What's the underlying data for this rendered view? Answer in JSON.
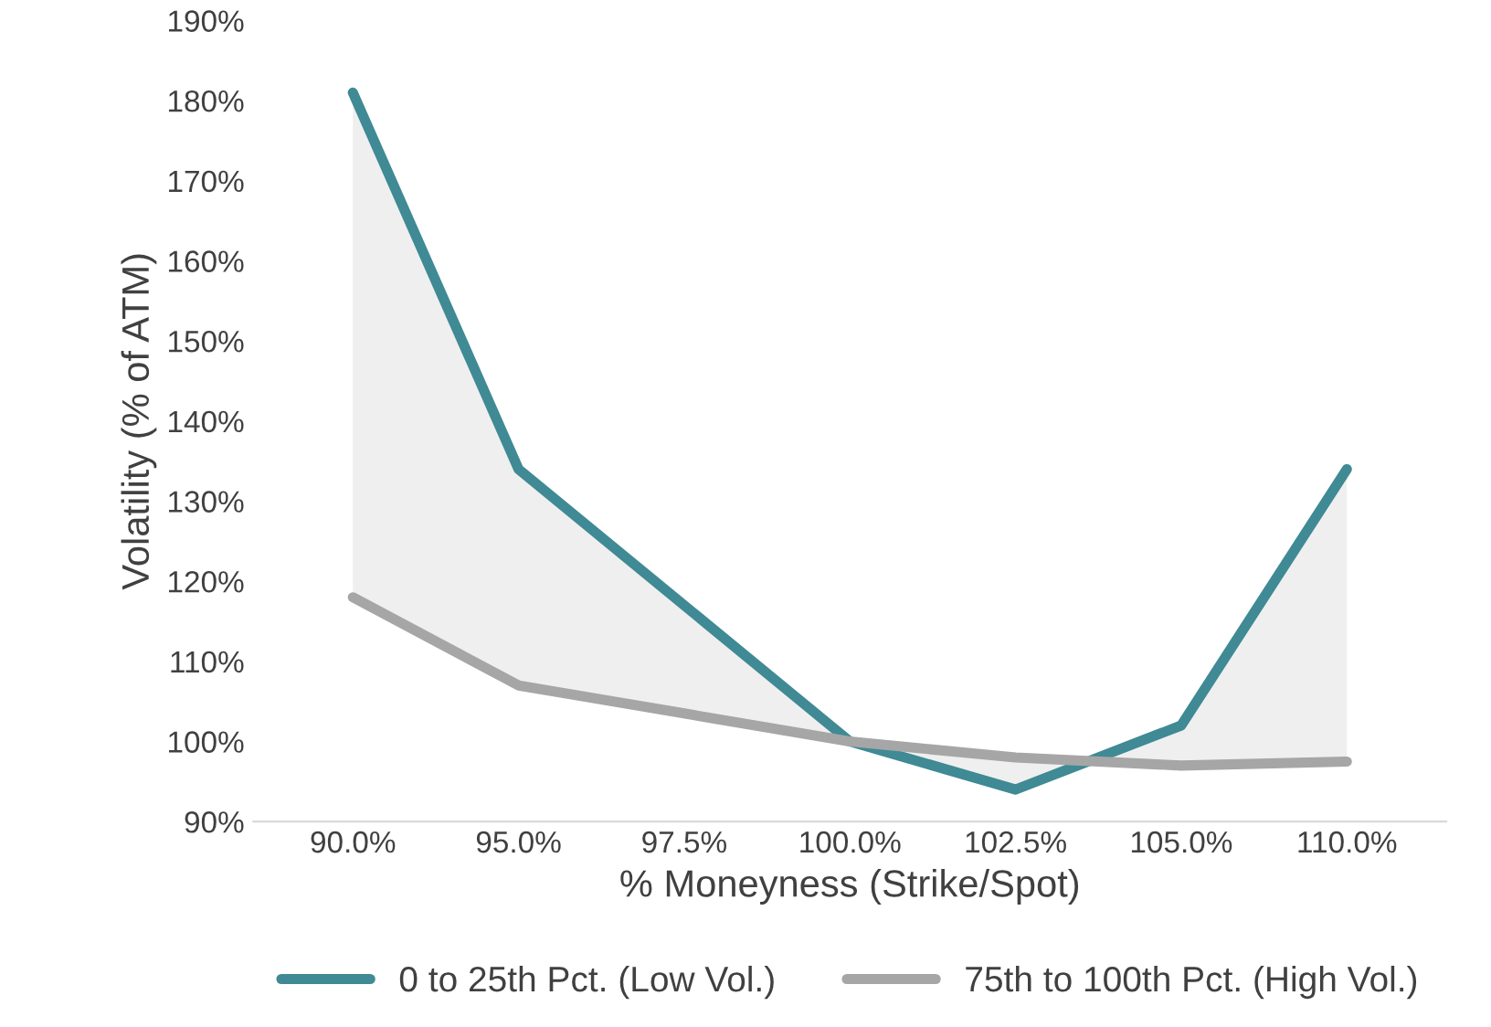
{
  "chart_data": {
    "type": "line",
    "xlabel": "% Moneyness (Strike/Spot)",
    "ylabel": "Volatility (% of ATM)",
    "categories": [
      "90.0%",
      "95.0%",
      "97.5%",
      "100.0%",
      "102.5%",
      "105.0%",
      "110.0%"
    ],
    "series": [
      {
        "name": "0 to 25th Pct. (Low Vol.)",
        "color": "#3f8a94",
        "values": [
          181,
          134,
          117,
          100,
          94,
          102,
          134
        ],
        "lower": [
          118,
          107,
          103.5,
          100,
          98,
          97,
          97.5
        ],
        "upper": [
          181,
          134,
          117,
          100,
          94,
          102,
          134
        ]
      },
      {
        "name": "75th to 100th Pct. (High Vol.)",
        "color": "#a6a6a6",
        "values": [
          118,
          107,
          103.5,
          100,
          98,
          97,
          97.5
        ]
      }
    ],
    "ylim": [
      90,
      190
    ],
    "yticks": [
      {
        "value": 90,
        "label": "90%"
      },
      {
        "value": 100,
        "label": "100%"
      },
      {
        "value": 110,
        "label": "110%"
      },
      {
        "value": 120,
        "label": "120%"
      },
      {
        "value": 130,
        "label": "130%"
      },
      {
        "value": 140,
        "label": "140%"
      },
      {
        "value": 150,
        "label": "150%"
      },
      {
        "value": 160,
        "label": "160%"
      },
      {
        "value": 170,
        "label": "170%"
      },
      {
        "value": 180,
        "label": "180%"
      },
      {
        "value": 190,
        "label": "190%"
      }
    ],
    "grid": false,
    "legend": "bottom",
    "marker": "none",
    "line_style": "solid"
  }
}
